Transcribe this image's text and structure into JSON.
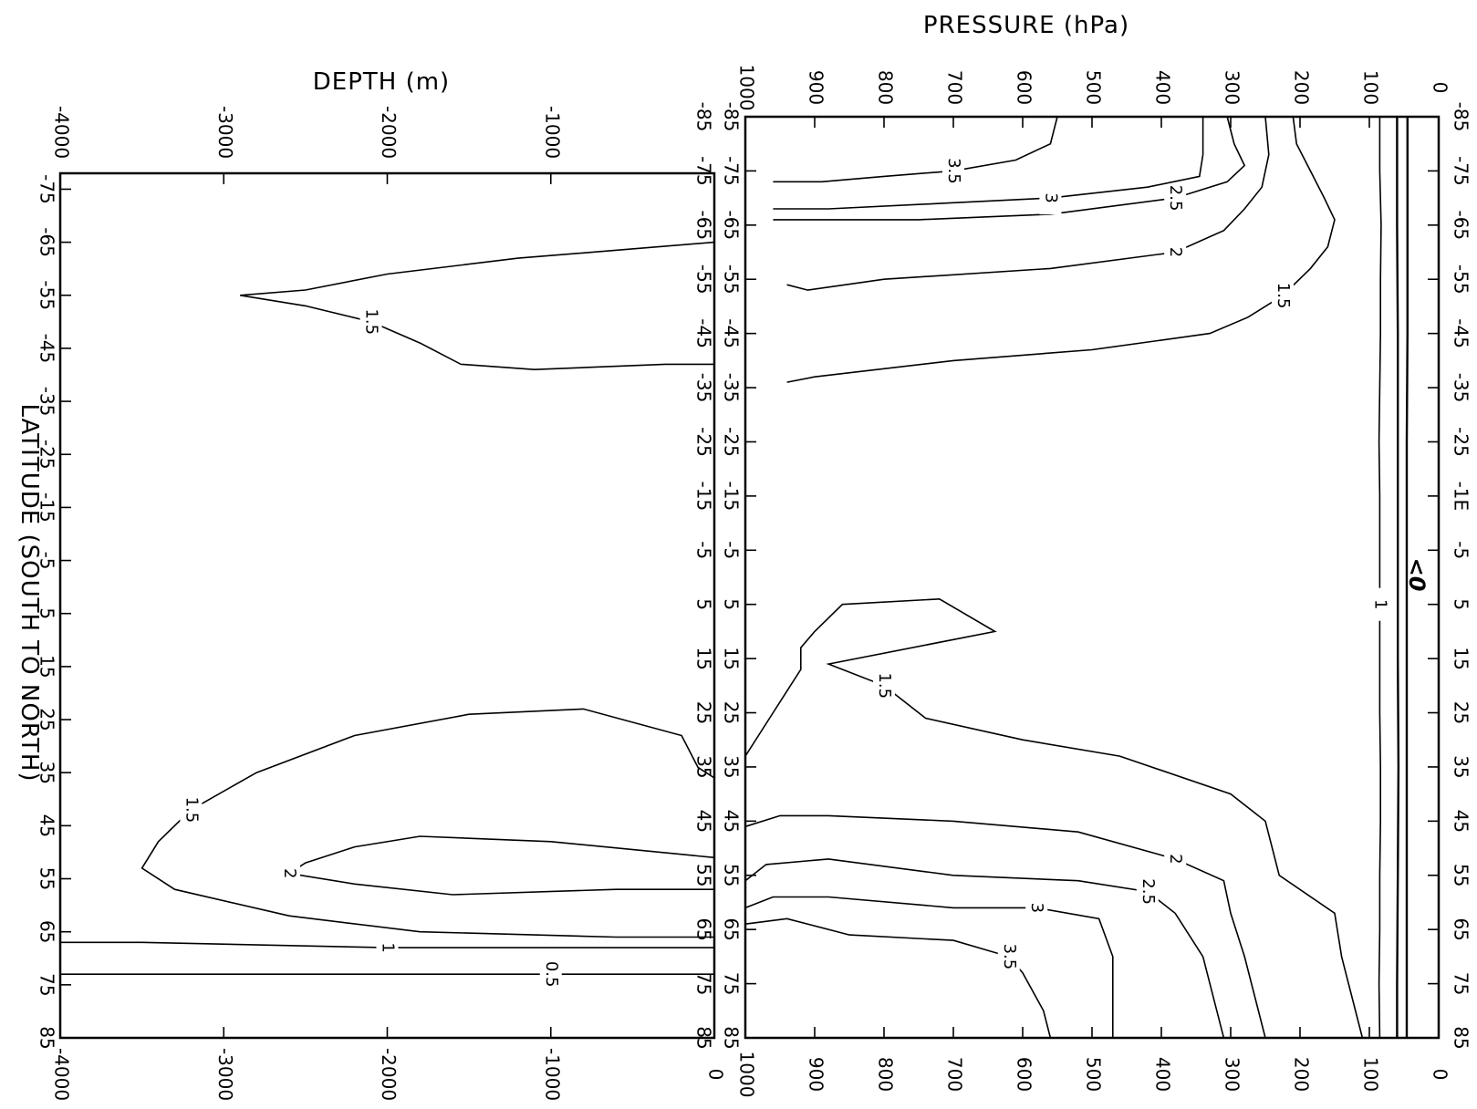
{
  "chart_data": [
    {
      "type": "contour",
      "panel": "atmosphere",
      "title": "",
      "ylabel": "PRESSURE (hPa)",
      "xlabel": "",
      "x_ticks": [
        "-85",
        "-75",
        "-65",
        "-55",
        "-45",
        "-35",
        "-25",
        "-15",
        "-5",
        "5",
        "15",
        "25",
        "35",
        "45",
        "55",
        "65",
        "75",
        "85"
      ],
      "x_ticks_top_right": [
        "-85",
        "-75",
        "-65",
        "-55",
        "-45",
        "-35",
        "-25",
        "-1Ε",
        "-5",
        "5",
        "15",
        "25",
        "35",
        "45",
        "55",
        "65",
        "75",
        "85"
      ],
      "x_range": [
        -85,
        85
      ],
      "y_ticks": [
        "1000",
        "900",
        "800",
        "700",
        "600",
        "500",
        "400",
        "300",
        "200",
        "100",
        "0"
      ],
      "y_range": [
        1000,
        0
      ],
      "annotation": "<0",
      "contours": [
        {
          "level": "1",
          "points": [
            [
              -85,
              85
            ],
            [
              -75,
              85
            ],
            [
              -65,
              83
            ],
            [
              -55,
              84
            ],
            [
              -45,
              84
            ],
            [
              -35,
              85
            ],
            [
              -25,
              86
            ],
            [
              -15,
              85
            ],
            [
              -5,
              85
            ],
            [
              5,
              85
            ],
            [
              15,
              85
            ],
            [
              25,
              85
            ],
            [
              35,
              84
            ],
            [
              45,
              84
            ],
            [
              55,
              85
            ],
            [
              65,
              85
            ],
            [
              75,
              86
            ],
            [
              85,
              85
            ]
          ]
        },
        {
          "level": "",
          "points": [
            [
              -85,
              60
            ],
            [
              -65,
              60
            ],
            [
              -45,
              59
            ],
            [
              -25,
              59
            ],
            [
              -5,
              59
            ],
            [
              15,
              59
            ],
            [
              35,
              58
            ],
            [
              55,
              59
            ],
            [
              75,
              60
            ],
            [
              85,
              60
            ]
          ]
        },
        {
          "level": "",
          "points": [
            [
              -85,
              45
            ],
            [
              -65,
              45
            ],
            [
              -45,
              45
            ],
            [
              -25,
              46
            ],
            [
              -5,
              46
            ],
            [
              15,
              46
            ],
            [
              35,
              46
            ],
            [
              55,
              46
            ],
            [
              75,
              46
            ],
            [
              85,
              46
            ]
          ]
        },
        {
          "level": "1.5",
          "points": [
            [
              -85,
              210
            ],
            [
              -80,
              205
            ],
            [
              -75,
              185
            ],
            [
              -70,
              165
            ],
            [
              -66,
              150
            ],
            [
              -61,
              160
            ],
            [
              -57,
              185
            ],
            [
              -52,
              225
            ],
            [
              -48,
              275
            ],
            [
              -45,
              330
            ],
            [
              -42,
              500
            ],
            [
              -40,
              700
            ],
            [
              -37,
              900
            ],
            [
              -36,
              940
            ]
          ]
        },
        {
          "level": "2",
          "points": [
            [
              -85,
              250
            ],
            [
              -78,
              245
            ],
            [
              -72,
              255
            ],
            [
              -68,
              280
            ],
            [
              -64,
              310
            ],
            [
              -60,
              380
            ],
            [
              -57,
              560
            ],
            [
              -55,
              800
            ],
            [
              -53,
              910
            ],
            [
              -54,
              940
            ]
          ]
        },
        {
          "level": "2.5",
          "points": [
            [
              -85,
              305
            ],
            [
              -80,
              295
            ],
            [
              -76,
              280
            ],
            [
              -73,
              305
            ],
            [
              -70,
              380
            ],
            [
              -67,
              560
            ],
            [
              -66,
              750
            ],
            [
              -66,
              900
            ],
            [
              -66,
              960
            ]
          ]
        },
        {
          "level": "3",
          "points": [
            [
              -85,
              340
            ],
            [
              -78,
              340
            ],
            [
              -74,
              345
            ],
            [
              -72,
              420
            ],
            [
              -70,
              560
            ],
            [
              -69,
              720
            ],
            [
              -68,
              880
            ],
            [
              -68,
              960
            ]
          ]
        },
        {
          "level": "3.5",
          "points": [
            [
              -85,
              550
            ],
            [
              -80,
              560
            ],
            [
              -77,
              610
            ],
            [
              -75,
              700
            ],
            [
              -74,
              800
            ],
            [
              -73,
              890
            ],
            [
              -73,
              960
            ]
          ]
        },
        {
          "level": "1.5",
          "points": [
            [
              33,
              1000
            ],
            [
              25,
              960
            ],
            [
              17,
              920
            ],
            [
              13,
              920
            ],
            [
              10,
              900
            ],
            [
              5,
              860
            ],
            [
              4,
              720
            ],
            [
              10,
              640
            ],
            [
              16,
              880
            ],
            [
              20,
              800
            ],
            [
              26,
              740
            ],
            [
              30,
              600
            ],
            [
              33,
              460
            ],
            [
              40,
              300
            ],
            [
              45,
              250
            ],
            [
              55,
              230
            ],
            [
              62,
              150
            ],
            [
              70,
              140
            ],
            [
              85,
              110
            ]
          ]
        },
        {
          "level": "2",
          "points": [
            [
              46,
              1000
            ],
            [
              44,
              950
            ],
            [
              44,
              880
            ],
            [
              45,
              700
            ],
            [
              47,
              520
            ],
            [
              52,
              380
            ],
            [
              56,
              310
            ],
            [
              62,
              300
            ],
            [
              70,
              280
            ],
            [
              85,
              250
            ]
          ]
        },
        {
          "level": "2.5",
          "points": [
            [
              56,
              1000
            ],
            [
              53,
              970
            ],
            [
              52,
              880
            ],
            [
              55,
              700
            ],
            [
              56,
              520
            ],
            [
              58,
              420
            ],
            [
              62,
              380
            ],
            [
              70,
              340
            ],
            [
              80,
              320
            ],
            [
              85,
              310
            ]
          ]
        },
        {
          "level": "3",
          "points": [
            [
              61,
              1000
            ],
            [
              59,
              960
            ],
            [
              59,
              880
            ],
            [
              61,
              700
            ],
            [
              61,
              580
            ],
            [
              63,
              490
            ],
            [
              70,
              470
            ],
            [
              75,
              470
            ],
            [
              85,
              470
            ]
          ]
        },
        {
          "level": "3.5",
          "points": [
            [
              64,
              1000
            ],
            [
              63,
              940
            ],
            [
              66,
              850
            ],
            [
              67,
              700
            ],
            [
              70,
              620
            ],
            [
              73,
              600
            ],
            [
              80,
              570
            ],
            [
              85,
              560
            ]
          ]
        }
      ]
    },
    {
      "type": "contour",
      "panel": "ocean",
      "title": "",
      "ylabel": "DEPTH (m)",
      "xlabel": "LATITUDE (SOUTH TO NORTH)",
      "x_ticks": [
        "-75",
        "-65",
        "-55",
        "-45",
        "-35",
        "-25",
        "-15",
        "-5",
        "5",
        "15",
        "25",
        "35",
        "45",
        "55",
        "65",
        "75",
        "85"
      ],
      "x_ticks_upper": [
        "-85",
        "-75",
        "-65",
        "-55",
        "-45",
        "-35",
        "-25",
        "-15",
        "-5",
        "5",
        "15",
        "25",
        "35",
        "45",
        "55",
        "65",
        "75",
        "85"
      ],
      "x_range": [
        -78,
        85
      ],
      "y_ticks": [
        "-4000",
        "-3000",
        "-2000",
        "-1000",
        "0"
      ],
      "y_range": [
        -4000,
        0
      ],
      "contours": [
        {
          "level": "1.5",
          "points": [
            [
              -65,
              0
            ],
            [
              -62,
              -1200
            ],
            [
              -59,
              -2000
            ],
            [
              -56,
              -2500
            ],
            [
              -55,
              -2900
            ],
            [
              -53,
              -2500
            ],
            [
              -50,
              -2100
            ],
            [
              -46,
              -1800
            ],
            [
              -42,
              -1550
            ],
            [
              -41,
              -1100
            ],
            [
              -42,
              -300
            ],
            [
              -42,
              0
            ]
          ]
        },
        {
          "level": "1.5",
          "points": [
            [
              36,
              0
            ],
            [
              34,
              -100
            ],
            [
              28,
              -200
            ],
            [
              23,
              -800
            ],
            [
              24,
              -1500
            ],
            [
              28,
              -2200
            ],
            [
              35,
              -2800
            ],
            [
              42,
              -3200
            ],
            [
              48,
              -3400
            ],
            [
              53,
              -3500
            ],
            [
              57,
              -3300
            ],
            [
              62,
              -2600
            ],
            [
              65,
              -1800
            ],
            [
              66,
              -600
            ],
            [
              66,
              0
            ]
          ]
        },
        {
          "level": "2",
          "points": [
            [
              51,
              0
            ],
            [
              48,
              -1000
            ],
            [
              47,
              -1800
            ],
            [
              49,
              -2200
            ],
            [
              52,
              -2500
            ],
            [
              54,
              -2600
            ],
            [
              56,
              -2200
            ],
            [
              58,
              -1600
            ],
            [
              57,
              -600
            ],
            [
              57,
              0
            ]
          ]
        },
        {
          "level": "1",
          "points": [
            [
              67,
              -4000
            ],
            [
              67,
              -3500
            ],
            [
              68,
              -2000
            ],
            [
              68,
              -1000
            ],
            [
              68,
              0
            ]
          ]
        },
        {
          "level": "0.5",
          "points": [
            [
              73,
              -4000
            ],
            [
              73,
              -2500
            ],
            [
              73,
              -1000
            ],
            [
              73,
              0
            ]
          ]
        }
      ]
    }
  ]
}
